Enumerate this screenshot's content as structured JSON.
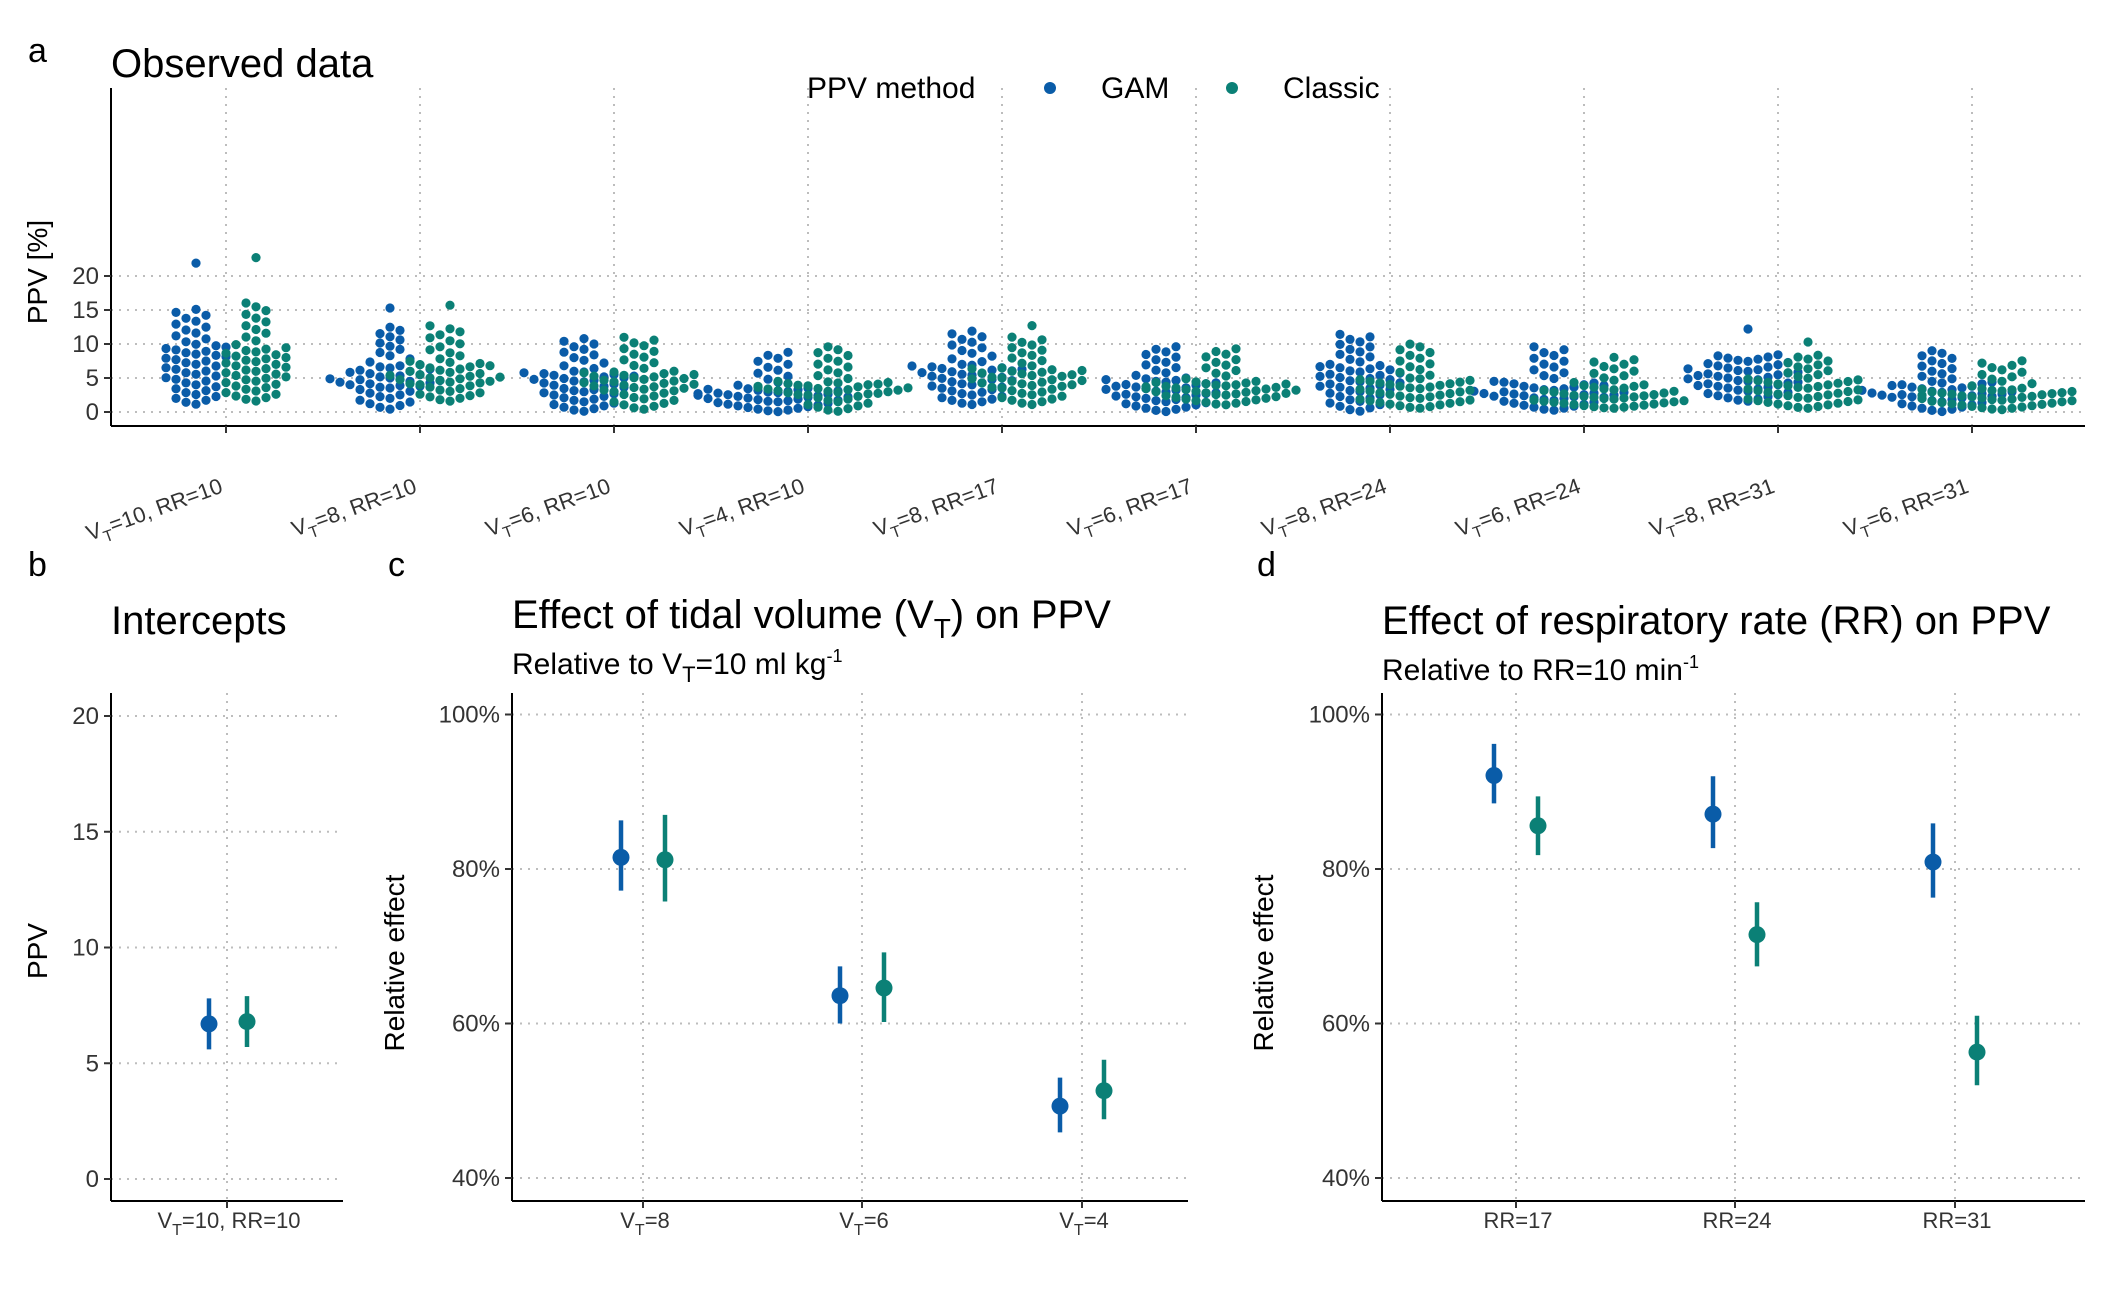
{
  "colors": {
    "GAM": "#0a5ca8",
    "Classic": "#0b8076",
    "grid": "#bdbdbd"
  },
  "legend": {
    "title": "PPV method",
    "items": [
      "GAM",
      "Classic"
    ]
  },
  "panel_a": {
    "letter": "a",
    "title": "Observed data",
    "ylabel": "PPV [%]",
    "ylim": [
      -1,
      24
    ],
    "yticks": [
      "0",
      "5",
      "10",
      "15",
      "20"
    ],
    "categories": [
      {
        "pre": "V",
        "sub": "T",
        "post": "=10, RR=10"
      },
      {
        "pre": "V",
        "sub": "T",
        "post": "=8, RR=10"
      },
      {
        "pre": "V",
        "sub": "T",
        "post": "=6, RR=10"
      },
      {
        "pre": "V",
        "sub": "T",
        "post": "=4, RR=10"
      },
      {
        "pre": "V",
        "sub": "T",
        "post": "=8, RR=17"
      },
      {
        "pre": "V",
        "sub": "T",
        "post": "=6, RR=17"
      },
      {
        "pre": "V",
        "sub": "T",
        "post": "=8, RR=24"
      },
      {
        "pre": "V",
        "sub": "T",
        "post": "=6, RR=24"
      },
      {
        "pre": "V",
        "sub": "T",
        "post": "=8, RR=31"
      },
      {
        "pre": "V",
        "sub": "T",
        "post": "=6, RR=31"
      }
    ]
  },
  "panel_b": {
    "letter": "b",
    "title": "Intercepts",
    "ylabel": "PPV",
    "yticks": [
      "0",
      "5",
      "10",
      "15",
      "20"
    ],
    "category": {
      "pre": "V",
      "sub": "T",
      "post": "=10, RR=10"
    }
  },
  "panel_c": {
    "letter": "c",
    "title_pre": "Effect of tidal volume (V",
    "title_sub": "T",
    "title_post": ") on PPV",
    "subtitle_pre": "Relative to V",
    "subtitle_sub": "T",
    "subtitle_mid": "=10 ml kg",
    "subtitle_sup": "-1",
    "ylabel": "Relative effect",
    "yticks": [
      "40%",
      "60%",
      "80%",
      "100%"
    ],
    "categories": [
      {
        "pre": "V",
        "sub": "T",
        "post": "=8"
      },
      {
        "pre": "V",
        "sub": "T",
        "post": "=6"
      },
      {
        "pre": "V",
        "sub": "T",
        "post": "=4"
      }
    ]
  },
  "panel_d": {
    "letter": "d",
    "title": "Effect of respiratory rate (RR) on PPV",
    "subtitle_pre": "Relative to RR=10 min",
    "subtitle_sup": "-1",
    "ylabel": "Relative effect",
    "yticks": [
      "40%",
      "60%",
      "80%",
      "100%"
    ],
    "categories": [
      "RR=17",
      "RR=24",
      "RR=31"
    ]
  },
  "chart_data": [
    {
      "panel": "a",
      "type": "scatter",
      "title": "Observed data",
      "ylabel": "PPV [%]",
      "ylim": [
        -1,
        24
      ],
      "grid": true,
      "legend_placement": "top-center",
      "categories": [
        "VT=10, RR=10",
        "VT=8, RR=10",
        "VT=6, RR=10",
        "VT=4, RR=10",
        "VT=8, RR=17",
        "VT=6, RR=17",
        "VT=8, RR=24",
        "VT=6, RR=24",
        "VT=8, RR=31",
        "VT=6, RR=31"
      ],
      "points_per_group": 50,
      "series": [
        {
          "name": "GAM",
          "groups": [
            {
              "min": 1.0,
              "q1": 4.5,
              "median": 7.5,
              "q3": 10.0,
              "max": 15.3,
              "outliers": [
                21.9
              ]
            },
            {
              "min": 0.3,
              "q1": 3.5,
              "median": 5.0,
              "q3": 7.0,
              "max": 12.7,
              "outliers": [
                15.3
              ]
            },
            {
              "min": 0.0,
              "q1": 2.5,
              "median": 4.5,
              "q3": 6.0,
              "max": 11.0,
              "outliers": []
            },
            {
              "min": 0.0,
              "q1": 1.5,
              "median": 2.5,
              "q3": 3.5,
              "max": 9.0,
              "outliers": []
            },
            {
              "min": 1.0,
              "q1": 3.5,
              "median": 5.5,
              "q3": 7.0,
              "max": 12.1,
              "outliers": []
            },
            {
              "min": 0.0,
              "q1": 2.0,
              "median": 3.5,
              "q3": 5.0,
              "max": 9.8,
              "outliers": []
            },
            {
              "min": 0.0,
              "q1": 3.0,
              "median": 5.0,
              "q3": 7.0,
              "max": 11.6,
              "outliers": []
            },
            {
              "min": 0.2,
              "q1": 2.0,
              "median": 3.0,
              "q3": 4.5,
              "max": 9.8,
              "outliers": []
            },
            {
              "min": 1.5,
              "q1": 3.5,
              "median": 5.0,
              "q3": 6.5,
              "max": 8.5,
              "outliers": [
                12.2
              ]
            },
            {
              "min": 0.0,
              "q1": 2.0,
              "median": 3.0,
              "q3": 4.5,
              "max": 9.2,
              "outliers": []
            }
          ]
        },
        {
          "name": "Classic",
          "groups": [
            {
              "min": 1.5,
              "q1": 4.5,
              "median": 7.0,
              "q3": 9.5,
              "max": 16.3,
              "outliers": [
                22.7
              ]
            },
            {
              "min": 1.5,
              "q1": 4.0,
              "median": 5.5,
              "q3": 7.5,
              "max": 12.9,
              "outliers": [
                15.7
              ]
            },
            {
              "min": 0.3,
              "q1": 3.0,
              "median": 4.5,
              "q3": 6.0,
              "max": 11.2,
              "outliers": []
            },
            {
              "min": 0.0,
              "q1": 2.5,
              "median": 3.5,
              "q3": 4.5,
              "max": 9.8,
              "outliers": []
            },
            {
              "min": 1.0,
              "q1": 3.5,
              "median": 5.0,
              "q3": 6.5,
              "max": 11.2,
              "outliers": [
                12.7
              ]
            },
            {
              "min": 1.0,
              "q1": 2.5,
              "median": 3.5,
              "q3": 4.5,
              "max": 9.5,
              "outliers": []
            },
            {
              "min": 0.5,
              "q1": 2.0,
              "median": 3.5,
              "q3": 5.0,
              "max": 10.2,
              "outliers": []
            },
            {
              "min": 0.5,
              "q1": 1.5,
              "median": 2.5,
              "q3": 4.0,
              "max": 8.2,
              "outliers": []
            },
            {
              "min": 0.5,
              "q1": 2.0,
              "median": 3.5,
              "q3": 5.0,
              "max": 8.5,
              "outliers": [
                10.3
              ]
            },
            {
              "min": 0.3,
              "q1": 1.5,
              "median": 2.5,
              "q3": 3.5,
              "max": 7.7,
              "outliers": []
            }
          ]
        }
      ]
    },
    {
      "panel": "b",
      "type": "scatter",
      "title": "Intercepts",
      "ylabel": "PPV",
      "ylim": [
        -1,
        21
      ],
      "grid": true,
      "categories": [
        "VT=10, RR=10"
      ],
      "series": [
        {
          "name": "GAM",
          "values": [
            {
              "est": 6.7,
              "lo": 5.6,
              "hi": 7.8
            }
          ]
        },
        {
          "name": "Classic",
          "values": [
            {
              "est": 6.8,
              "lo": 5.7,
              "hi": 7.9
            }
          ]
        }
      ]
    },
    {
      "panel": "c",
      "type": "scatter",
      "title": "Effect of tidal volume (VT) on PPV",
      "subtitle": "Relative to VT=10 ml kg-1",
      "ylabel": "Relative effect",
      "ylim": [
        37,
        103
      ],
      "grid": true,
      "categories": [
        "VT=8",
        "VT=6",
        "VT=4"
      ],
      "series": [
        {
          "name": "GAM",
          "values": [
            {
              "est": 81.5,
              "lo": 77.2,
              "hi": 86.3
            },
            {
              "est": 63.6,
              "lo": 60.0,
              "hi": 67.4
            },
            {
              "est": 49.3,
              "lo": 45.9,
              "hi": 53.0
            }
          ]
        },
        {
          "name": "Classic",
          "values": [
            {
              "est": 81.2,
              "lo": 75.8,
              "hi": 87.0
            },
            {
              "est": 64.6,
              "lo": 60.2,
              "hi": 69.2
            },
            {
              "est": 51.3,
              "lo": 47.6,
              "hi": 55.3
            }
          ]
        }
      ]
    },
    {
      "panel": "d",
      "type": "scatter",
      "title": "Effect of respiratory rate (RR) on PPV",
      "subtitle": "Relative to RR=10 min-1",
      "ylabel": "Relative effect",
      "ylim": [
        37,
        103
      ],
      "grid": true,
      "categories": [
        "RR=17",
        "RR=24",
        "RR=31"
      ],
      "series": [
        {
          "name": "GAM",
          "values": [
            {
              "est": 92.1,
              "lo": 88.5,
              "hi": 96.2
            },
            {
              "est": 87.1,
              "lo": 82.7,
              "hi": 92.0
            },
            {
              "est": 80.9,
              "lo": 76.3,
              "hi": 85.9
            }
          ]
        },
        {
          "name": "Classic",
          "values": [
            {
              "est": 85.6,
              "lo": 81.8,
              "hi": 89.4
            },
            {
              "est": 71.5,
              "lo": 67.4,
              "hi": 75.7
            },
            {
              "est": 56.3,
              "lo": 52.0,
              "hi": 61.0
            }
          ]
        }
      ]
    }
  ]
}
